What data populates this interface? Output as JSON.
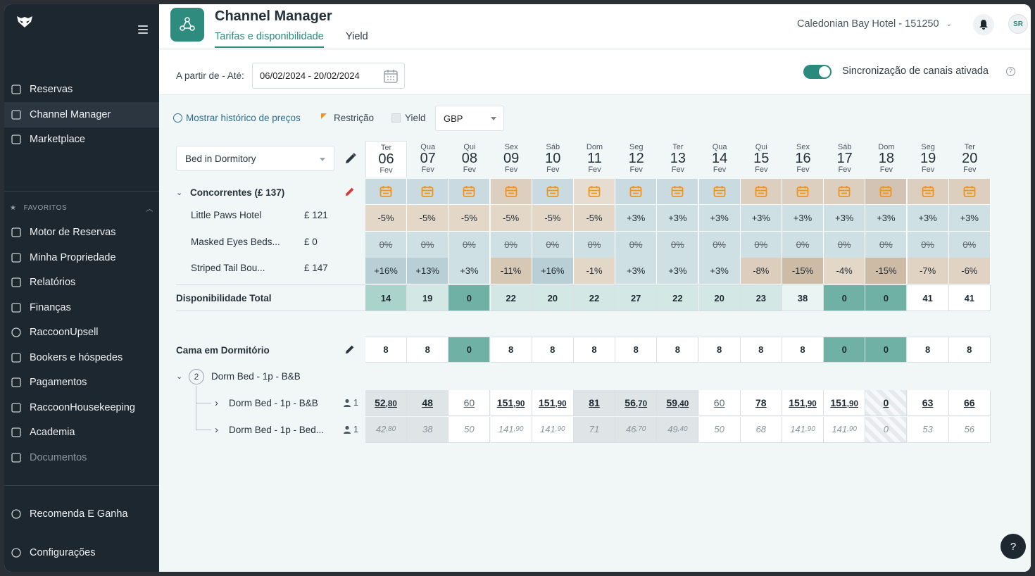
{
  "sidebar": {
    "main_items": [
      {
        "label": "Reservas",
        "icon": "reservations-icon"
      },
      {
        "label": "Channel Manager",
        "icon": "channel-manager-icon",
        "active": true
      },
      {
        "label": "Marketplace",
        "icon": "marketplace-icon"
      }
    ],
    "favorites_label": "FAVORITOS",
    "favorite_items": [
      {
        "label": "Motor de Reservas",
        "icon": "booking-engine-icon"
      },
      {
        "label": "Minha Propriedade",
        "icon": "property-icon"
      },
      {
        "label": "Relatórios",
        "icon": "reports-icon"
      },
      {
        "label": "Finanças",
        "icon": "finance-icon"
      },
      {
        "label": "RaccoonUpsell",
        "icon": "upsell-icon"
      },
      {
        "label": "Bookers e hóspedes",
        "icon": "guests-icon"
      },
      {
        "label": "Pagamentos",
        "icon": "payments-icon"
      },
      {
        "label": "RaccoonHousekeeping",
        "icon": "housekeeping-icon"
      },
      {
        "label": "Academia",
        "icon": "academy-icon"
      },
      {
        "label": "Documentos",
        "icon": "documents-icon",
        "dim": true
      }
    ],
    "bottom_items": [
      {
        "label": "Recomenda E Ganha",
        "icon": "heart-icon"
      },
      {
        "label": "Configurações",
        "icon": "settings-icon"
      }
    ]
  },
  "header": {
    "title": "Channel Manager",
    "tabs": [
      {
        "label": "Tarifas e disponibilidade",
        "active": true
      },
      {
        "label": "Yield",
        "active": false
      }
    ],
    "hotel": "Caledonian Bay Hotel - 151250",
    "avatar_initials": "SR"
  },
  "filters": {
    "range_label": "A partir de - Até:",
    "date_range": "06/02/2024 - 20/02/2024",
    "sync_label": "Sincronização de canais ativada",
    "sync_enabled": true
  },
  "toolbar": {
    "history_link": "Mostrar histórico de preços",
    "restriction_label": "Restrição",
    "yield_label": "Yield",
    "currency": "GBP",
    "room_type": "Bed in Dormitory"
  },
  "dates": [
    {
      "wd": "Ter",
      "d": "06",
      "m": "Fev"
    },
    {
      "wd": "Qua",
      "d": "07",
      "m": "Fev"
    },
    {
      "wd": "Qui",
      "d": "08",
      "m": "Fev"
    },
    {
      "wd": "Sex",
      "d": "09",
      "m": "Fev"
    },
    {
      "wd": "Sáb",
      "d": "10",
      "m": "Fev"
    },
    {
      "wd": "Dom",
      "d": "11",
      "m": "Fev"
    },
    {
      "wd": "Seg",
      "d": "12",
      "m": "Fev"
    },
    {
      "wd": "Ter",
      "d": "13",
      "m": "Fev"
    },
    {
      "wd": "Qua",
      "d": "14",
      "m": "Fev"
    },
    {
      "wd": "Qui",
      "d": "15",
      "m": "Fev"
    },
    {
      "wd": "Sex",
      "d": "16",
      "m": "Fev"
    },
    {
      "wd": "Sáb",
      "d": "17",
      "m": "Fev"
    },
    {
      "wd": "Dom",
      "d": "18",
      "m": "Fev"
    },
    {
      "wd": "Seg",
      "d": "19",
      "m": "Fev"
    },
    {
      "wd": "Ter",
      "d": "20",
      "m": "Fev"
    }
  ],
  "competitors": {
    "title": "Concorrentes (£ 137)",
    "calendar_colors": [
      "#c9dbe0",
      "#c9dbe0",
      "#c9dbe0",
      "#dccfc0",
      "#c9dbe0",
      "#e6ddd0",
      "#c9dbe0",
      "#c9dbe0",
      "#c9dbe0",
      "#dccfc0",
      "#dccfc0",
      "#dccfc0",
      "#d2c3b3",
      "#dccfc0",
      "#dccfc0"
    ],
    "rows": [
      {
        "name": "Little Paws Hotel",
        "price": "£ 121",
        "values": [
          "-5%",
          "-5%",
          "-5%",
          "-5%",
          "-5%",
          "-5%",
          "+3%",
          "+3%",
          "+3%",
          "+3%",
          "+3%",
          "+3%",
          "+3%",
          "+3%",
          "+3%"
        ],
        "colors": [
          "#e3d7c8",
          "#e3d7c8",
          "#e3d7c8",
          "#e3d7c8",
          "#e3d7c8",
          "#e3d7c8",
          "#cfe0e4",
          "#cfe0e4",
          "#cfe0e4",
          "#cfe0e4",
          "#cfe0e4",
          "#cfe0e4",
          "#cfe0e4",
          "#cfe0e4",
          "#cfe0e4"
        ],
        "strike": false
      },
      {
        "name": "Masked Eyes Beds...",
        "price": "£ 0",
        "values": [
          "0%",
          "0%",
          "0%",
          "0%",
          "0%",
          "0%",
          "0%",
          "0%",
          "0%",
          "0%",
          "0%",
          "0%",
          "0%",
          "0%",
          "0%"
        ],
        "colors": [
          "#cfe0e4",
          "#cfe0e4",
          "#cfe0e4",
          "#cfe0e4",
          "#cfe0e4",
          "#cfe0e4",
          "#cfe0e4",
          "#cfe0e4",
          "#cfe0e4",
          "#cfe0e4",
          "#cfe0e4",
          "#cfe0e4",
          "#cfe0e4",
          "#cfe0e4",
          "#cfe0e4"
        ],
        "strike": true
      },
      {
        "name": "Striped Tail Bou...",
        "price": "£ 147",
        "values": [
          "+16%",
          "+13%",
          "+3%",
          "-11%",
          "+16%",
          "-1%",
          "+3%",
          "+3%",
          "+3%",
          "-8%",
          "-15%",
          "-4%",
          "-15%",
          "-7%",
          "-6%"
        ],
        "colors": [
          "#b9cfd6",
          "#b9cfd6",
          "#cfe0e4",
          "#d7c8b6",
          "#b9cfd6",
          "#e3d7c8",
          "#cfe0e4",
          "#cfe0e4",
          "#cfe0e4",
          "#dccdbc",
          "#cdbba6",
          "#e3d7c8",
          "#cdbba6",
          "#e0d3c3",
          "#e0d3c3"
        ],
        "strike": false
      }
    ]
  },
  "availability": {
    "label": "Disponibilidade Total",
    "values": [
      "14",
      "19",
      "0",
      "22",
      "20",
      "22",
      "27",
      "22",
      "20",
      "23",
      "38",
      "0",
      "0",
      "41",
      "41"
    ],
    "colors": [
      "#a9d3cb",
      "#d3e8e4",
      "#6fb1a5",
      "#d3e8e4",
      "#d3e8e4",
      "#d3e8e4",
      "#d3e8e4",
      "#d3e8e4",
      "#d3e8e4",
      "#d3e8e4",
      "#eaf4f2",
      "#6fb1a5",
      "#6fb1a5",
      "#ffffff",
      "#ffffff"
    ]
  },
  "room": {
    "label": "Cama em Dormitório",
    "values": [
      "8",
      "8",
      "0",
      "8",
      "8",
      "8",
      "8",
      "8",
      "8",
      "8",
      "8",
      "0",
      "0",
      "8",
      "8"
    ],
    "zero_color": "#6fb1a5",
    "group_count": "2",
    "group_label": "Dorm Bed - 1p - B&B",
    "rates": [
      {
        "label": "Dorm Bed - 1p - B&B",
        "guests": "1",
        "values": [
          [
            "52",
            ",80"
          ],
          [
            "48",
            ""
          ],
          [
            "60",
            ""
          ],
          [
            "151",
            ",90"
          ],
          [
            "151",
            ",90"
          ],
          [
            "81",
            ""
          ],
          [
            "56",
            ",70"
          ],
          [
            "59",
            ",40"
          ],
          [
            "60",
            ""
          ],
          [
            "78",
            ""
          ],
          [
            "151",
            ",90"
          ],
          [
            "151",
            ",90"
          ],
          [
            "0",
            ""
          ],
          [
            "63",
            ""
          ],
          [
            "66",
            ""
          ]
        ],
        "styles": [
          "bold-bg",
          "bold-bg",
          "plain",
          "bold",
          "bold",
          "bold-bg",
          "bold-bg",
          "bold-bg",
          "plain",
          "bold",
          "bold",
          "bold",
          "bold-hatch",
          "bold",
          "bold"
        ]
      },
      {
        "label": "Dorm Bed - 1p - Bed...",
        "guests": "1",
        "values": [
          [
            "42",
            ",80"
          ],
          [
            "38",
            ""
          ],
          [
            "50",
            ""
          ],
          [
            "141",
            ",90"
          ],
          [
            "141",
            ",90"
          ],
          [
            "71",
            ""
          ],
          [
            "46",
            ",70"
          ],
          [
            "49",
            ",40"
          ],
          [
            "50",
            ""
          ],
          [
            "68",
            ""
          ],
          [
            "141",
            ",90"
          ],
          [
            "141",
            ",90"
          ],
          [
            "0",
            ""
          ],
          [
            "53",
            ""
          ],
          [
            "56",
            ""
          ]
        ],
        "styles": [
          "bg",
          "bg",
          "w",
          "w",
          "w",
          "bg",
          "bg",
          "bg",
          "w",
          "w",
          "w",
          "w",
          "hatch",
          "w",
          "w"
        ]
      }
    ]
  },
  "help_fab": "?"
}
